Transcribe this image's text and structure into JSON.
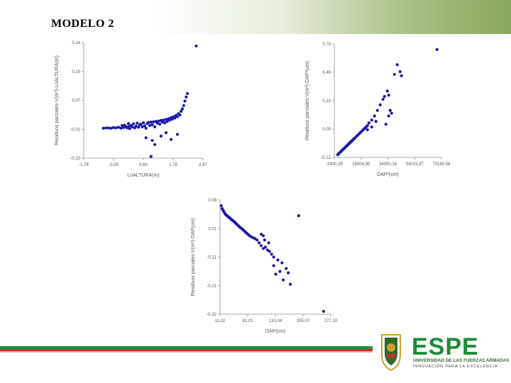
{
  "slide": {
    "title": "MODELO 2"
  },
  "logo": {
    "wordmark": "ESPE",
    "line1": "UNIVERSIDAD DE LAS FUERZAS ARMADAS",
    "line2": "INNOVACIÓN PARA LA EXCELENCIA",
    "colors": {
      "green": "#1e8a3a",
      "dark": "#2f6a2a",
      "gold": "#c9a22a"
    }
  },
  "theme": {
    "point_color": "#1a1aa6",
    "band_green": "#8aa75e"
  },
  "chart_data": [
    {
      "type": "scatter",
      "xlabel": "LnALTURA(m)",
      "ylabel": "Residuos parciales-V(m³)-LnALTURA(m)",
      "x_ticks": [
        "-1,78",
        "-0,59",
        "0,60",
        "1,78",
        "2,97"
      ],
      "y_ticks": [
        "0,24",
        "0,15",
        "0,07",
        "-0,01",
        "-0,10"
      ],
      "xlim": [
        -1.78,
        2.97
      ],
      "ylim": [
        -0.1,
        0.24
      ],
      "points": [
        [
          -1.0,
          -0.012
        ],
        [
          -0.9,
          -0.011
        ],
        [
          -0.8,
          -0.011
        ],
        [
          -0.7,
          -0.012
        ],
        [
          -0.6,
          -0.01
        ],
        [
          -0.5,
          -0.011
        ],
        [
          -0.4,
          -0.009
        ],
        [
          -0.3,
          -0.012
        ],
        [
          -0.25,
          -0.004
        ],
        [
          -0.2,
          -0.01
        ],
        [
          -0.15,
          -0.003
        ],
        [
          -0.1,
          -0.008
        ],
        [
          -0.05,
          -0.011
        ],
        [
          0.0,
          -0.007
        ],
        [
          0.0,
          0.002
        ],
        [
          0.05,
          -0.013
        ],
        [
          0.1,
          -0.004
        ],
        [
          0.15,
          -0.008
        ],
        [
          0.2,
          0.001
        ],
        [
          0.25,
          -0.011
        ],
        [
          0.3,
          -0.006
        ],
        [
          0.35,
          0.003
        ],
        [
          0.4,
          -0.009
        ],
        [
          0.45,
          -0.002
        ],
        [
          0.5,
          0.0
        ],
        [
          0.55,
          -0.008
        ],
        [
          0.6,
          0.004
        ],
        [
          0.65,
          -0.005
        ],
        [
          0.7,
          -0.012
        ],
        [
          0.75,
          0.002
        ],
        [
          0.8,
          0.005
        ],
        [
          0.85,
          -0.004
        ],
        [
          0.9,
          0.006
        ],
        [
          0.95,
          -0.002
        ],
        [
          1.0,
          0.007
        ],
        [
          1.05,
          -0.008
        ],
        [
          1.1,
          0.008
        ],
        [
          1.15,
          0.003
        ],
        [
          1.2,
          0.009
        ],
        [
          1.25,
          0.0
        ],
        [
          1.3,
          0.011
        ],
        [
          1.35,
          0.006
        ],
        [
          1.4,
          0.012
        ],
        [
          1.45,
          0.004
        ],
        [
          1.5,
          0.014
        ],
        [
          1.55,
          0.008
        ],
        [
          1.6,
          0.016
        ],
        [
          1.65,
          0.012
        ],
        [
          1.7,
          0.019
        ],
        [
          1.75,
          0.015
        ],
        [
          1.8,
          0.022
        ],
        [
          1.85,
          0.018
        ],
        [
          1.9,
          0.026
        ],
        [
          1.95,
          0.022
        ],
        [
          2.0,
          0.031
        ],
        [
          2.05,
          0.027
        ],
        [
          2.1,
          0.038
        ],
        [
          2.15,
          0.045
        ],
        [
          2.2,
          0.055
        ],
        [
          2.25,
          0.068
        ],
        [
          2.3,
          0.08
        ],
        [
          2.35,
          0.09
        ],
        [
          1.3,
          -0.035
        ],
        [
          0.95,
          -0.048
        ],
        [
          0.9,
          -0.095
        ],
        [
          1.05,
          -0.06
        ],
        [
          0.7,
          -0.04
        ],
        [
          1.5,
          -0.025
        ],
        [
          1.95,
          -0.03
        ],
        [
          1.7,
          -0.045
        ],
        [
          2.7,
          0.23
        ]
      ]
    },
    {
      "type": "scatter",
      "xlabel": "DAP²(cm)",
      "ylabel": "Residuos parciales-V(m³)-DAP²(cm)",
      "x_ticks": [
        "-2400,26",
        "15604,95",
        "34050,16",
        "54015,37",
        "73180,58"
      ],
      "y_ticks": [
        "0,70",
        "0,46",
        "0,23",
        "0,09",
        "-0,12"
      ],
      "xlim": [
        -2400.26,
        73180.58
      ],
      "ylim": [
        -0.12,
        0.7
      ],
      "points": [
        [
          0,
          -0.1
        ],
        [
          500,
          -0.095
        ],
        [
          1000,
          -0.09
        ],
        [
          1500,
          -0.085
        ],
        [
          2000,
          -0.08
        ],
        [
          2500,
          -0.075
        ],
        [
          3000,
          -0.07
        ],
        [
          3500,
          -0.065
        ],
        [
          4000,
          -0.06
        ],
        [
          4500,
          -0.055
        ],
        [
          5000,
          -0.05
        ],
        [
          5500,
          -0.045
        ],
        [
          6000,
          -0.04
        ],
        [
          6500,
          -0.035
        ],
        [
          7000,
          -0.03
        ],
        [
          7500,
          -0.025
        ],
        [
          8000,
          -0.02
        ],
        [
          8500,
          -0.015
        ],
        [
          9000,
          -0.01
        ],
        [
          9500,
          -0.005
        ],
        [
          10000,
          0.0
        ],
        [
          10500,
          0.005
        ],
        [
          11000,
          0.01
        ],
        [
          11500,
          0.015
        ],
        [
          12000,
          0.02
        ],
        [
          13000,
          0.03
        ],
        [
          14000,
          0.04
        ],
        [
          15000,
          0.05
        ],
        [
          16000,
          0.06
        ],
        [
          17000,
          0.07
        ],
        [
          18000,
          0.08
        ],
        [
          19000,
          0.09
        ],
        [
          20000,
          0.1
        ],
        [
          21000,
          0.11
        ],
        [
          22000,
          0.13
        ],
        [
          24000,
          0.15
        ],
        [
          26000,
          0.18
        ],
        [
          28000,
          0.22
        ],
        [
          30000,
          0.26
        ],
        [
          32000,
          0.3
        ],
        [
          33000,
          0.32
        ],
        [
          35000,
          0.36
        ],
        [
          36000,
          0.33
        ],
        [
          34000,
          0.12
        ],
        [
          36000,
          0.18
        ],
        [
          37000,
          0.22
        ],
        [
          38000,
          0.2
        ],
        [
          40000,
          0.48
        ],
        [
          42000,
          0.55
        ],
        [
          44000,
          0.5
        ],
        [
          45000,
          0.47
        ],
        [
          27000,
          0.14
        ],
        [
          24000,
          0.1
        ],
        [
          21000,
          0.08
        ],
        [
          70000,
          0.66
        ]
      ]
    },
    {
      "type": "scatter",
      "xlabel": "DAP(cm)",
      "ylabel": "Residuos parciales-V(m³)-DAP(cm)",
      "x_ticks": [
        "11,02",
        "81,01",
        "133,04",
        "205,07",
        "277,10"
      ],
      "y_ticks": [
        "0,08",
        "0,01",
        "-0,11",
        "-0,21",
        "-0,32"
      ],
      "xlim": [
        11.02,
        277.1
      ],
      "ylim": [
        -0.32,
        0.08
      ],
      "points": [
        [
          14,
          0.06
        ],
        [
          16,
          0.05
        ],
        [
          18,
          0.045
        ],
        [
          20,
          0.04
        ],
        [
          22,
          0.035
        ],
        [
          24,
          0.03
        ],
        [
          26,
          0.028
        ],
        [
          28,
          0.025
        ],
        [
          30,
          0.022
        ],
        [
          32,
          0.02
        ],
        [
          34,
          0.018
        ],
        [
          36,
          0.015
        ],
        [
          38,
          0.012
        ],
        [
          40,
          0.01
        ],
        [
          42,
          0.008
        ],
        [
          44,
          0.005
        ],
        [
          46,
          0.003
        ],
        [
          48,
          0.0
        ],
        [
          50,
          -0.003
        ],
        [
          52,
          -0.006
        ],
        [
          55,
          -0.01
        ],
        [
          58,
          -0.014
        ],
        [
          60,
          -0.017
        ],
        [
          63,
          -0.02
        ],
        [
          66,
          -0.024
        ],
        [
          69,
          -0.028
        ],
        [
          72,
          -0.032
        ],
        [
          75,
          -0.036
        ],
        [
          78,
          -0.04
        ],
        [
          81,
          -0.044
        ],
        [
          85,
          -0.048
        ],
        [
          90,
          -0.052
        ],
        [
          95,
          -0.055
        ],
        [
          100,
          -0.06
        ],
        [
          105,
          -0.07
        ],
        [
          110,
          -0.08
        ],
        [
          115,
          -0.09
        ],
        [
          120,
          -0.085
        ],
        [
          125,
          -0.095
        ],
        [
          130,
          -0.1
        ],
        [
          135,
          -0.11
        ],
        [
          140,
          -0.12
        ],
        [
          110,
          -0.04
        ],
        [
          118,
          -0.06
        ],
        [
          128,
          -0.07
        ],
        [
          140,
          -0.15
        ],
        [
          145,
          -0.18
        ],
        [
          150,
          -0.13
        ],
        [
          155,
          -0.17
        ],
        [
          160,
          -0.14
        ],
        [
          163,
          -0.2
        ],
        [
          170,
          -0.16
        ],
        [
          175,
          -0.175
        ],
        [
          180,
          -0.215
        ],
        [
          200,
          0.025
        ],
        [
          115,
          -0.045
        ],
        [
          260,
          -0.31
        ]
      ]
    }
  ]
}
